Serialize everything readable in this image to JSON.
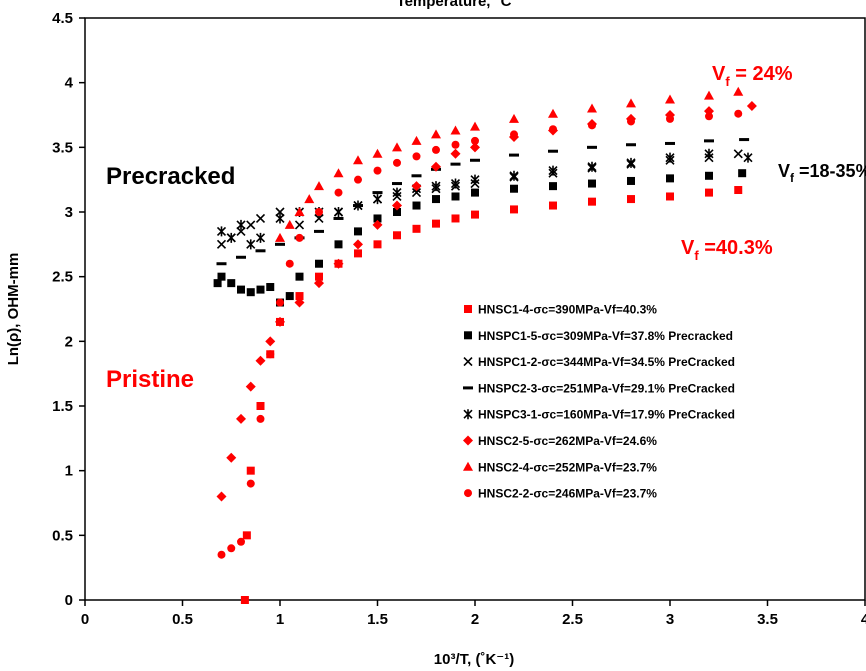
{
  "chart_data": {
    "type": "scatter",
    "top_axis_label": "Temperature, °C",
    "xlabel": "10³/T, (˚K⁻¹)",
    "ylabel": "Ln(ρ), OHM-mm",
    "xlim": [
      0,
      4
    ],
    "ylim": [
      0,
      4.5
    ],
    "x_ticks": [
      "0",
      "0.5",
      "1",
      "1.5",
      "2",
      "2.5",
      "3",
      "3.5",
      "4"
    ],
    "y_ticks": [
      "0",
      "0.5",
      "1",
      "1.5",
      "2",
      "2.5",
      "3",
      "3.5",
      "4",
      "4.5"
    ],
    "grid": false,
    "legend_position": "center-right, inside plot",
    "annotations": [
      {
        "text": "Precracked",
        "color": "#000000"
      },
      {
        "text": "Pristine",
        "color": "#ff0000"
      },
      {
        "text": "V",
        "sub": "f",
        "suffix": " = 24%",
        "color": "#ff0000"
      },
      {
        "text": "V",
        "sub": "f",
        "suffix": " =40.3%",
        "color": "#ff0000"
      },
      {
        "text": "V",
        "sub": "f",
        "suffix": " =18-35%",
        "color": "#000000"
      }
    ],
    "series": [
      {
        "name": "HNSC1-4-σc=390MPa-Vf=40.3%",
        "marker": "square",
        "color": "#ff0000",
        "x": [
          0.82,
          0.83,
          0.85,
          0.9,
          0.95,
          1.0,
          1.1,
          1.2,
          1.3,
          1.4,
          1.5,
          1.6,
          1.7,
          1.8,
          1.9,
          2.0,
          2.2,
          2.4,
          2.6,
          2.8,
          3.0,
          3.2,
          3.35
        ],
        "y": [
          0.0,
          0.5,
          1.0,
          1.5,
          1.9,
          2.15,
          2.35,
          2.5,
          2.6,
          2.68,
          2.75,
          2.82,
          2.87,
          2.91,
          2.95,
          2.98,
          3.02,
          3.05,
          3.08,
          3.1,
          3.12,
          3.15,
          3.17
        ]
      },
      {
        "name": "HNSPC1-5-σc=309MPa-Vf=37.8% Precracked",
        "marker": "square",
        "color": "#000000",
        "x": [
          0.68,
          0.7,
          0.75,
          0.8,
          0.85,
          0.9,
          0.95,
          1.0,
          1.05,
          1.1,
          1.2,
          1.3,
          1.4,
          1.5,
          1.6,
          1.7,
          1.8,
          1.9,
          2.0,
          2.2,
          2.4,
          2.6,
          2.8,
          3.0,
          3.2,
          3.37
        ],
        "y": [
          2.45,
          2.5,
          2.45,
          2.4,
          2.38,
          2.4,
          2.42,
          2.3,
          2.35,
          2.5,
          2.6,
          2.75,
          2.85,
          2.95,
          3.0,
          3.05,
          3.1,
          3.12,
          3.15,
          3.18,
          3.2,
          3.22,
          3.24,
          3.26,
          3.28,
          3.3
        ]
      },
      {
        "name": "HNSPC1-2-σc=344MPa-Vf=34.5% PreCracked",
        "marker": "x",
        "color": "#000000",
        "x": [
          0.7,
          0.75,
          0.8,
          0.85,
          0.9,
          1.0,
          1.1,
          1.2,
          1.3,
          1.4,
          1.5,
          1.6,
          1.7,
          1.8,
          1.9,
          2.0,
          2.2,
          2.4,
          2.6,
          2.8,
          3.0,
          3.2,
          3.35
        ],
        "y": [
          2.75,
          2.8,
          2.85,
          2.9,
          2.95,
          3.0,
          2.9,
          2.95,
          3.0,
          3.05,
          3.1,
          3.12,
          3.15,
          3.18,
          3.2,
          3.22,
          3.27,
          3.3,
          3.34,
          3.37,
          3.4,
          3.42,
          3.45
        ]
      },
      {
        "name": "HNSPC2-3-σc=251MPa-Vf=29.1% PreCracked",
        "marker": "dash",
        "color": "#000000",
        "x": [
          0.7,
          0.8,
          0.9,
          1.0,
          1.1,
          1.2,
          1.3,
          1.4,
          1.5,
          1.6,
          1.7,
          1.8,
          1.9,
          2.0,
          2.2,
          2.4,
          2.6,
          2.8,
          3.0,
          3.2,
          3.38
        ],
        "y": [
          2.6,
          2.65,
          2.7,
          2.75,
          2.8,
          2.85,
          2.95,
          3.05,
          3.15,
          3.22,
          3.28,
          3.33,
          3.37,
          3.4,
          3.44,
          3.47,
          3.5,
          3.52,
          3.53,
          3.55,
          3.56
        ]
      },
      {
        "name": "HNSPC3-1-σc=160MPa-Vf=17.9% PreCracked",
        "marker": "asterisk",
        "color": "#000000",
        "x": [
          0.7,
          0.75,
          0.8,
          0.85,
          0.9,
          1.0,
          1.1,
          1.2,
          1.3,
          1.4,
          1.5,
          1.6,
          1.7,
          1.8,
          1.9,
          2.0,
          2.2,
          2.4,
          2.6,
          2.8,
          3.0,
          3.2,
          3.4
        ],
        "y": [
          2.85,
          2.8,
          2.9,
          2.75,
          2.8,
          2.95,
          3.0,
          3.0,
          3.0,
          3.05,
          3.1,
          3.15,
          3.18,
          3.2,
          3.22,
          3.25,
          3.28,
          3.32,
          3.35,
          3.38,
          3.42,
          3.45,
          3.42
        ]
      },
      {
        "name": "HNSC2-5-σc=262MPa-Vf=24.6%",
        "marker": "diamond",
        "color": "#ff0000",
        "x": [
          0.7,
          0.75,
          0.8,
          0.85,
          0.9,
          0.95,
          1.0,
          1.1,
          1.2,
          1.3,
          1.4,
          1.5,
          1.6,
          1.7,
          1.8,
          1.9,
          2.0,
          2.2,
          2.4,
          2.6,
          2.8,
          3.0,
          3.2,
          3.42
        ],
        "y": [
          0.8,
          1.1,
          1.4,
          1.65,
          1.85,
          2.0,
          2.15,
          2.3,
          2.45,
          2.6,
          2.75,
          2.9,
          3.05,
          3.2,
          3.35,
          3.45,
          3.5,
          3.58,
          3.63,
          3.68,
          3.72,
          3.75,
          3.78,
          3.82
        ]
      },
      {
        "name": "HNSC2-4-σc=252MPa-Vf=23.7%",
        "marker": "triangle",
        "color": "#ff0000",
        "x": [
          1.0,
          1.05,
          1.1,
          1.15,
          1.2,
          1.3,
          1.4,
          1.5,
          1.6,
          1.7,
          1.8,
          1.9,
          2.0,
          2.2,
          2.4,
          2.6,
          2.8,
          3.0,
          3.2,
          3.35
        ],
        "y": [
          2.8,
          2.9,
          3.0,
          3.1,
          3.2,
          3.3,
          3.4,
          3.45,
          3.5,
          3.55,
          3.6,
          3.63,
          3.66,
          3.72,
          3.76,
          3.8,
          3.84,
          3.87,
          3.9,
          3.93
        ]
      },
      {
        "name": "HNSC2-2-σc=246MPa-Vf=23.7%",
        "marker": "circle",
        "color": "#ff0000",
        "x": [
          0.7,
          0.75,
          0.8,
          0.85,
          0.9,
          0.95,
          1.0,
          1.05,
          1.1,
          1.2,
          1.3,
          1.4,
          1.5,
          1.6,
          1.7,
          1.8,
          1.9,
          2.0,
          2.2,
          2.4,
          2.6,
          2.8,
          3.0,
          3.2,
          3.35
        ],
        "y": [
          0.35,
          0.4,
          0.45,
          0.9,
          1.4,
          1.9,
          2.3,
          2.6,
          2.8,
          3.0,
          3.15,
          3.25,
          3.32,
          3.38,
          3.43,
          3.48,
          3.52,
          3.55,
          3.6,
          3.64,
          3.67,
          3.7,
          3.72,
          3.74,
          3.76
        ]
      }
    ]
  }
}
